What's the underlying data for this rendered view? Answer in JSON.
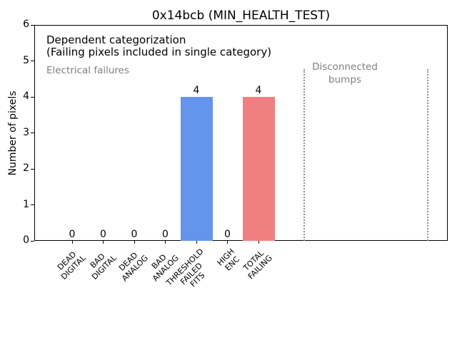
{
  "chart_data": {
    "type": "bar",
    "title": "0x14bcb (MIN_HEALTH_TEST)",
    "xlabel": "",
    "ylabel": "Number of pixels",
    "ylim": [
      0,
      6
    ],
    "yticks": [
      0,
      1,
      2,
      3,
      4,
      5,
      6
    ],
    "categories": [
      "DEAD\nDIGITAL",
      "BAD\nDIGITAL",
      "DEAD\nANALOG",
      "BAD\nANALOG",
      "THRESHOLD\nFAILED\nFITS",
      "HIGH\nENC",
      "TOTAL\nFAILING"
    ],
    "values": [
      0,
      0,
      0,
      0,
      4,
      0,
      4
    ],
    "value_labels": [
      "0",
      "0",
      "0",
      "0",
      "4",
      "0",
      "4"
    ],
    "bar_colors": [
      "#6495ED",
      "#6495ED",
      "#6495ED",
      "#6495ED",
      "#6495ED",
      "#6495ED",
      "#F08080"
    ],
    "grid": false,
    "legend": null,
    "annotations": {
      "line1": "Dependent categorization",
      "line2": "(Failing pixels included in single category)",
      "left_region_label": "Electrical failures",
      "right_region_label": "Disconnected\nbumps"
    },
    "colors": {
      "threshold_bar": "#6495ED",
      "total_failing_bar": "#F08080",
      "gray_text": "#808080",
      "divider_gray": "#909090",
      "axis": "#000000"
    }
  }
}
